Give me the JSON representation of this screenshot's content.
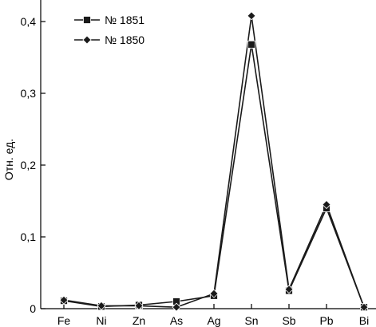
{
  "chart_data": {
    "type": "line",
    "title": "",
    "xlabel": "",
    "ylabel": "Отн. ед.",
    "categories": [
      "Fe",
      "Ni",
      "Zn",
      "As",
      "Ag",
      "Sn",
      "Sb",
      "Pb",
      "Bi"
    ],
    "ylim": [
      0,
      0.43
    ],
    "yticks": [
      0,
      0.1,
      0.2,
      0.3,
      0.4
    ],
    "ytick_labels": [
      "0",
      "0,1",
      "0,2",
      "0,3",
      "0,4"
    ],
    "grid": false,
    "legend_position": "top-left",
    "series": [
      {
        "name": "№ 1851",
        "marker": "square",
        "color": "#1a1a1a",
        "values": [
          0.011,
          0.003,
          0.005,
          0.01,
          0.018,
          0.368,
          0.025,
          0.14,
          0.002
        ]
      },
      {
        "name": "№ 1850",
        "marker": "diamond",
        "color": "#1a1a1a",
        "values": [
          0.012,
          0.004,
          0.004,
          0.002,
          0.021,
          0.408,
          0.027,
          0.145,
          0.002
        ]
      }
    ]
  }
}
